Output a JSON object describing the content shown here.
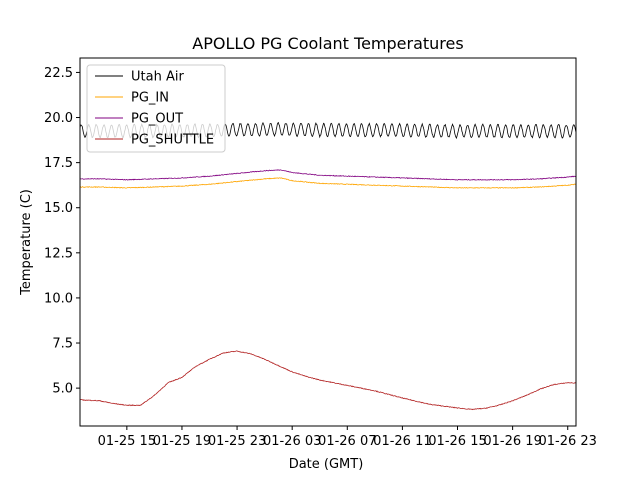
{
  "chart_data": {
    "type": "line",
    "title": "APOLLO PG Coolant Temperatures",
    "xlabel": "Date (GMT)",
    "ylabel": "Temperature (C)",
    "xlim": [
      11.6,
      47.6
    ],
    "ylim": [
      2.9,
      23.3
    ],
    "y_ticks": [
      5.0,
      7.5,
      10.0,
      12.5,
      15.0,
      17.5,
      20.0,
      22.5
    ],
    "y_tick_labels": [
      "5.0",
      "7.5",
      "10.0",
      "12.5",
      "15.0",
      "17.5",
      "20.0",
      "22.5"
    ],
    "x_ticks": [
      15,
      19,
      23,
      27,
      31,
      35,
      39,
      43,
      47
    ],
    "x_tick_labels": [
      "01-25 15",
      "01-25 19",
      "01-25 23",
      "01-26 03",
      "01-26 07",
      "01-26 11",
      "01-26 15",
      "01-26 19",
      "01-26 23"
    ],
    "legend_position": "top-left",
    "series": [
      {
        "name": "Utah Air",
        "color": "#000000",
        "oscillation": {
          "amplitude": 0.35,
          "period_hours": 0.55
        },
        "x": [
          11.6,
          14,
          18,
          22,
          26,
          30,
          34,
          38,
          42,
          46,
          47.6
        ],
        "y": [
          19.25,
          19.25,
          19.25,
          19.3,
          19.35,
          19.3,
          19.3,
          19.25,
          19.25,
          19.25,
          19.25
        ]
      },
      {
        "name": "PG_IN",
        "color": "#ffa500",
        "x": [
          11.6,
          13,
          15,
          17,
          19,
          21,
          23,
          25,
          26.2,
          27,
          29,
          31,
          33,
          35,
          37,
          39,
          41,
          43,
          45,
          47,
          47.6
        ],
        "y": [
          16.15,
          16.15,
          16.1,
          16.15,
          16.2,
          16.3,
          16.45,
          16.6,
          16.65,
          16.5,
          16.35,
          16.3,
          16.25,
          16.2,
          16.15,
          16.1,
          16.1,
          16.1,
          16.15,
          16.25,
          16.3
        ]
      },
      {
        "name": "PG_OUT",
        "color": "#800080",
        "x": [
          11.6,
          13,
          15,
          17,
          19,
          21,
          23,
          25,
          26.2,
          27,
          29,
          31,
          33,
          35,
          37,
          39,
          41,
          43,
          45,
          47,
          47.6
        ],
        "y": [
          16.6,
          16.6,
          16.55,
          16.6,
          16.65,
          16.75,
          16.9,
          17.05,
          17.1,
          16.95,
          16.8,
          16.75,
          16.7,
          16.65,
          16.6,
          16.55,
          16.55,
          16.55,
          16.6,
          16.7,
          16.75
        ]
      },
      {
        "name": "PG_SHUTTLE",
        "color": "#b22222",
        "x": [
          11.6,
          13,
          14,
          15,
          16,
          17,
          18,
          19,
          20,
          21,
          22,
          23,
          24,
          25,
          26,
          27,
          28,
          29,
          31,
          33,
          35,
          37,
          39,
          40,
          41,
          42,
          43,
          44,
          45,
          46,
          47,
          47.6
        ],
        "y": [
          4.35,
          4.3,
          4.15,
          4.05,
          4.05,
          4.6,
          5.3,
          5.6,
          6.2,
          6.6,
          6.95,
          7.05,
          6.9,
          6.6,
          6.25,
          5.9,
          5.65,
          5.45,
          5.15,
          4.85,
          4.45,
          4.1,
          3.9,
          3.82,
          3.88,
          4.05,
          4.3,
          4.6,
          4.95,
          5.2,
          5.3,
          5.28
        ]
      }
    ]
  }
}
